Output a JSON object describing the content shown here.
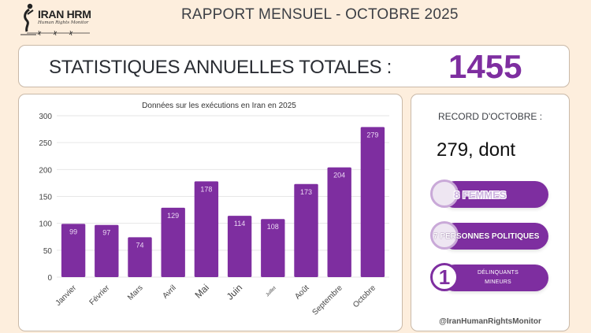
{
  "header": {
    "logo_title": "IRAN HRM",
    "logo_subtitle": "Human Rights Monitor",
    "page_title": "RAPPORT MENSUEL - OCTOBRE 2025"
  },
  "totals": {
    "label": "STATISTIQUES ANNUELLES TOTALES :",
    "value": "1455"
  },
  "colors": {
    "accent": "#7e2ea0",
    "background": "#fdeedd",
    "bar": "#7e2ea0",
    "bar_label": "#ead7f3"
  },
  "chart_data": {
    "type": "bar",
    "title": "Données sur les exécutions en Iran en 2025",
    "xlabel": "",
    "ylabel": "",
    "categories": [
      "Janvier",
      "Février",
      "Mars",
      "Avril",
      "Mai",
      "Juin",
      "Juillet",
      "Août",
      "Septembre",
      "Octobre"
    ],
    "values": [
      99,
      97,
      74,
      129,
      178,
      114,
      108,
      173,
      204,
      279
    ],
    "ylim": [
      0,
      300
    ],
    "yticks": [
      0,
      50,
      100,
      150,
      200,
      250,
      300
    ],
    "grid": true,
    "data_labels": true,
    "legend": "none"
  },
  "record": {
    "label": "RECORD D'OCTOBRE :",
    "value": "279, dont",
    "items": [
      {
        "icon": "woman-icon",
        "text": "8 FEMMES"
      },
      {
        "icon": "person-icon",
        "text": "7 PERSONNES POLITIQUES"
      },
      {
        "icon": "number-one-icon",
        "number": "1",
        "line1": "DÉLINQUANTS",
        "line2": "MINEURS"
      }
    ],
    "handle": "@IranHumanRightsMonitor"
  }
}
